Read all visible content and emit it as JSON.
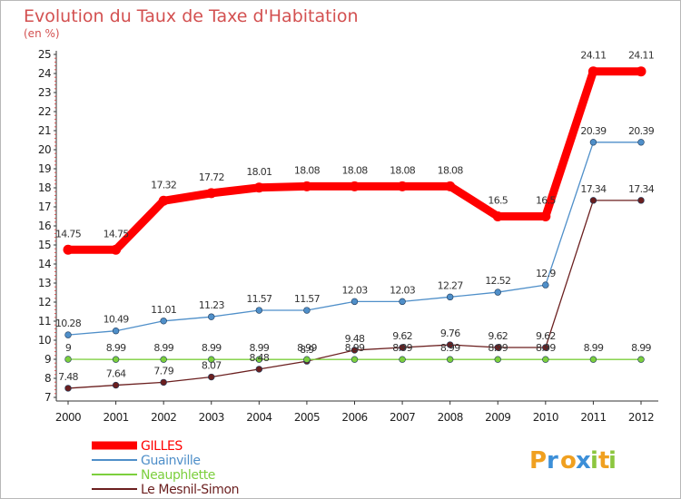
{
  "chart_data": {
    "type": "line",
    "title": "Evolution du Taux de Taxe d'Habitation",
    "subtitle": "(en %)",
    "xlabel": "",
    "ylabel": "",
    "categories": [
      "2000",
      "2001",
      "2002",
      "2003",
      "2004",
      "2005",
      "2006",
      "2007",
      "2008",
      "2009",
      "2010",
      "2011",
      "2012"
    ],
    "ylim": [
      7,
      25
    ],
    "yticks": [
      "7",
      "8",
      "9",
      "10",
      "11",
      "12",
      "13",
      "14",
      "15",
      "16",
      "17",
      "18",
      "19",
      "20",
      "21",
      "22",
      "23",
      "24",
      "25"
    ],
    "grid": false,
    "legend_position": "bottom-left",
    "series": [
      {
        "name": "GILLES",
        "color": "#ff0000",
        "values": [
          14.75,
          14.75,
          17.32,
          17.72,
          18.01,
          18.08,
          18.08,
          18.08,
          18.08,
          16.5,
          16.5,
          24.11,
          24.11
        ],
        "labels": [
          "14.75",
          "14.75",
          "17.32",
          "17.72",
          "18.01",
          "18.08",
          "18.08",
          "18.08",
          "18.08",
          "16.5",
          "16.5",
          "24.11",
          "24.11"
        ]
      },
      {
        "name": "Guainville",
        "color": "#4f8fc9",
        "values": [
          10.28,
          10.49,
          11.01,
          11.23,
          11.57,
          11.57,
          12.03,
          12.03,
          12.27,
          12.52,
          12.9,
          20.39,
          20.39
        ],
        "labels": [
          "10.28",
          "10.49",
          "11.01",
          "11.23",
          "11.57",
          "11.57",
          "12.03",
          "12.03",
          "12.27",
          "12.52",
          "12.9",
          "20.39",
          "20.39"
        ]
      },
      {
        "name": "Neauphlette",
        "color": "#7ccf3d",
        "values": [
          9,
          8.99,
          8.99,
          8.99,
          8.99,
          8.99,
          8.99,
          8.99,
          8.99,
          8.99,
          8.99,
          8.99,
          8.99
        ],
        "labels": [
          "9",
          "8.99",
          "8.99",
          "8.99",
          "8.99",
          "8.99",
          "8.99",
          "8.99",
          "8.99",
          "8.99",
          "8.99",
          "8.99",
          "8.99"
        ]
      },
      {
        "name": "Le Mesnil-Simon",
        "color": "#6b1f1f",
        "values": [
          7.48,
          7.64,
          7.79,
          8.07,
          8.48,
          8.9,
          9.48,
          9.62,
          9.76,
          9.62,
          9.62,
          17.34,
          17.34
        ],
        "labels": [
          "7.48",
          "7.64",
          "7.79",
          "8.07",
          "8.48",
          "8.9",
          "9.48",
          "9.62",
          "9.76",
          "9.62",
          "9.62",
          "17.34",
          "17.34"
        ]
      }
    ]
  },
  "brand": {
    "letters": [
      "P",
      "r",
      "o",
      "x",
      "i",
      "t",
      "i"
    ],
    "colors": [
      "#f0a020",
      "#3c8fd8",
      "#f0a020",
      "#3c8fd8",
      "#8cc63f",
      "#f0a020",
      "#8cc63f"
    ]
  }
}
